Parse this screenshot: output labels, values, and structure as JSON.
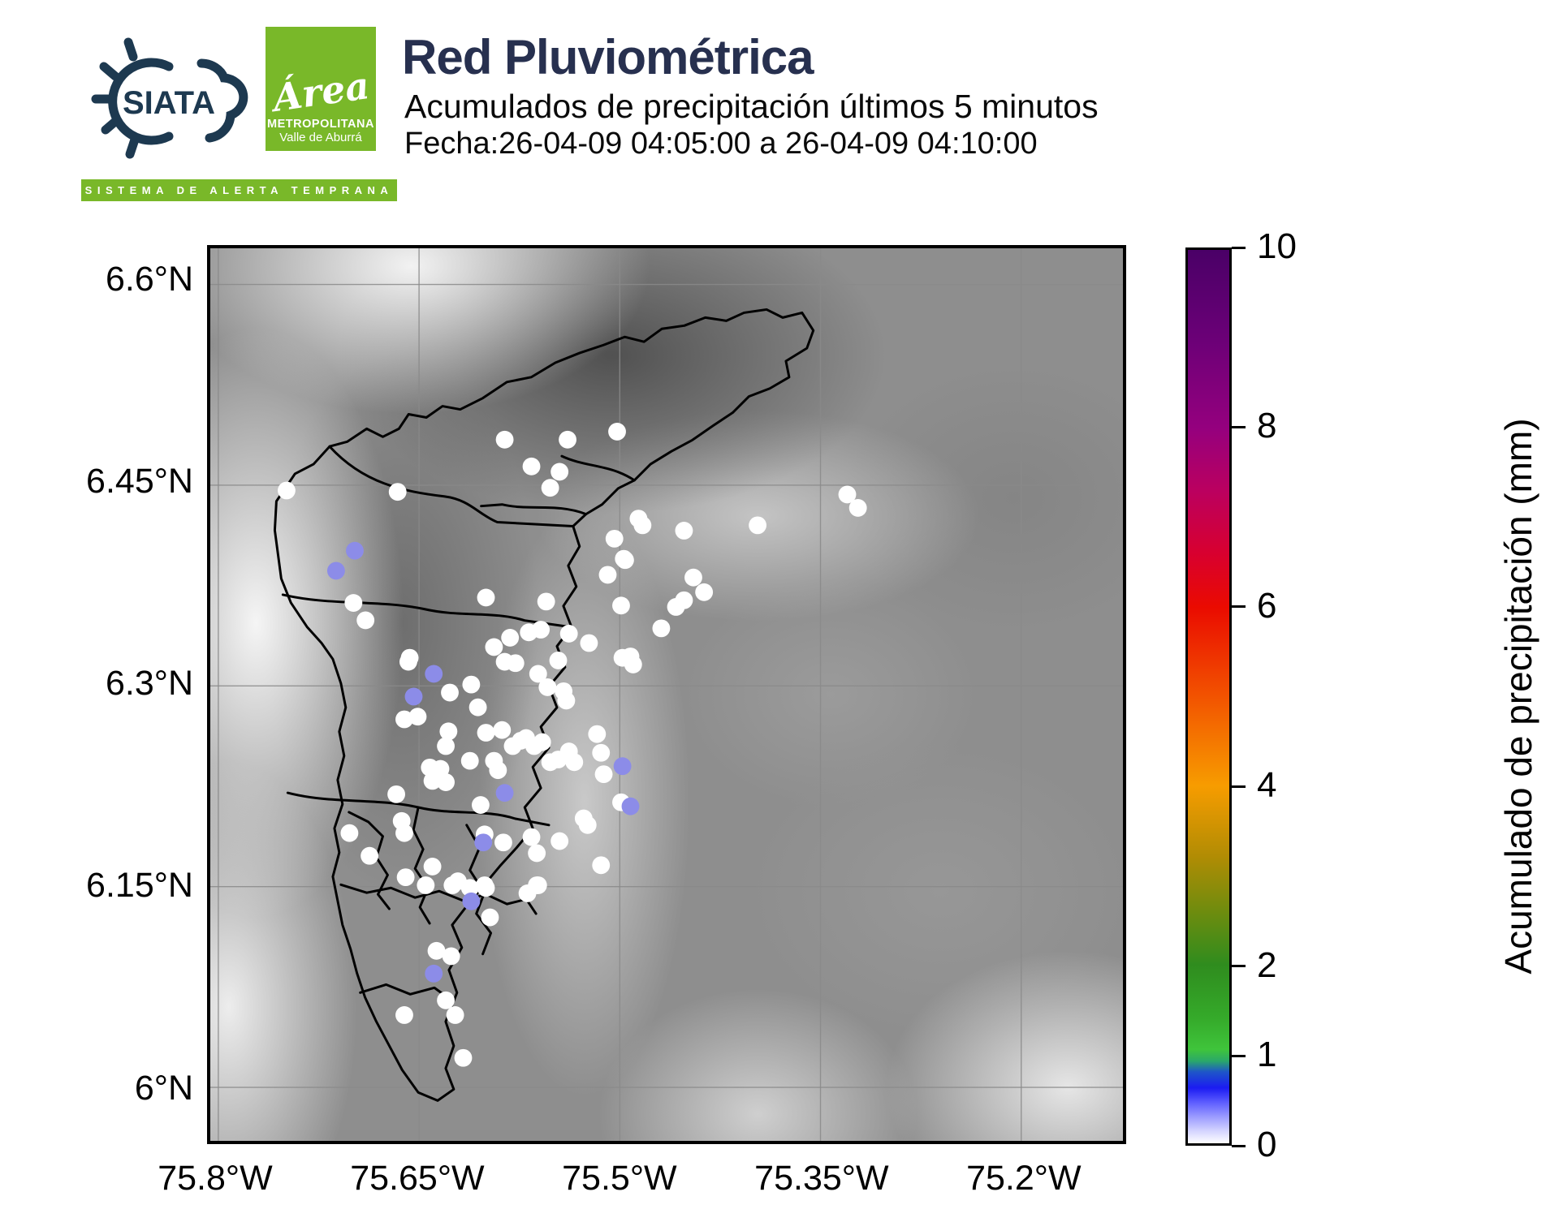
{
  "header": {
    "title": "Red Pluviométrica",
    "subtitle": "Acumulados de precipitación últimos 5 minutos",
    "date_line": "Fecha:26-04-09 04:05:00 a 26-04-09 04:10:00",
    "brand": {
      "siata_label": "SIATA",
      "siata_tagline": "SISTEMA DE ALERTA TEMPRANA",
      "area_script": "Área",
      "area_line1": "METROPOLITANA",
      "area_line2": "Valle de Aburrá",
      "green": "#79b829",
      "navy": "#27304f",
      "logo_ink": "#1d3950"
    }
  },
  "chart_data": {
    "type": "scatter",
    "title": "Red Pluviométrica",
    "x_tick_labels": [
      "75.8°W",
      "75.65°W",
      "75.5°W",
      "75.35°W",
      "75.2°W"
    ],
    "y_tick_labels": [
      "6.6°N",
      "6.45°N",
      "6.3°N",
      "6.15°N",
      "6°N"
    ],
    "x_tick_values": [
      75.8,
      75.65,
      75.5,
      75.35,
      75.2
    ],
    "y_tick_values": [
      6.6,
      6.45,
      6.3,
      6.15,
      6.0
    ],
    "extent": {
      "west": 75.806,
      "east": 75.124,
      "north": 6.627,
      "south": 5.96
    },
    "grid": true,
    "colorbar": {
      "label": "Acumulado de precipitación (mm)",
      "min": 0,
      "max": 10,
      "ticks": [
        0,
        1,
        2,
        4,
        6,
        8,
        10
      ],
      "stops": [
        {
          "v": 10,
          "c": "#4a0067"
        },
        {
          "v": 9,
          "c": "#6b0077"
        },
        {
          "v": 8,
          "c": "#95007e"
        },
        {
          "v": 7.3,
          "c": "#bb005f"
        },
        {
          "v": 6.6,
          "c": "#d8002f"
        },
        {
          "v": 6,
          "c": "#ea0b00"
        },
        {
          "v": 5,
          "c": "#f25300"
        },
        {
          "v": 4,
          "c": "#f79c00"
        },
        {
          "v": 3.2,
          "c": "#b08c04"
        },
        {
          "v": 2.6,
          "c": "#6f8c0e"
        },
        {
          "v": 2,
          "c": "#2f8c1e"
        },
        {
          "v": 1.4,
          "c": "#35aa2a"
        },
        {
          "v": 1.05,
          "c": "#3fc43b"
        },
        {
          "v": 0.92,
          "c": "#2aa86a"
        },
        {
          "v": 0.8,
          "c": "#1e56c8"
        },
        {
          "v": 0.62,
          "c": "#1b1bf2"
        },
        {
          "v": 0.45,
          "c": "#6060ff"
        },
        {
          "v": 0.3,
          "c": "#9a9aff"
        },
        {
          "v": 0.15,
          "c": "#d0d0ff"
        },
        {
          "v": 0,
          "c": "#ffffff"
        }
      ]
    },
    "stations": {
      "dot_radius_px": 11,
      "groups": [
        {
          "name": "sin-lluvia",
          "value_mm": 0,
          "color": "#ffffff",
          "points": [
            [
              75.586,
              6.484
            ],
            [
              75.566,
              6.464
            ],
            [
              75.539,
              6.484
            ],
            [
              75.502,
              6.49
            ],
            [
              75.545,
              6.46
            ],
            [
              75.552,
              6.448
            ],
            [
              75.666,
              6.445
            ],
            [
              75.749,
              6.446
            ],
            [
              75.397,
              6.42
            ],
            [
              75.33,
              6.443
            ],
            [
              75.322,
              6.433
            ],
            [
              75.504,
              6.41
            ],
            [
              75.497,
              6.395
            ],
            [
              75.486,
              6.425
            ],
            [
              75.483,
              6.42
            ],
            [
              75.496,
              6.394
            ],
            [
              75.509,
              6.383
            ],
            [
              75.452,
              6.416
            ],
            [
              75.445,
              6.381
            ],
            [
              75.437,
              6.37
            ],
            [
              75.452,
              6.364
            ],
            [
              75.458,
              6.359
            ],
            [
              75.499,
              6.36
            ],
            [
              75.469,
              6.343
            ],
            [
              75.492,
              6.322
            ],
            [
              75.555,
              6.363
            ],
            [
              75.538,
              6.339
            ],
            [
              75.523,
              6.332
            ],
            [
              75.568,
              6.34
            ],
            [
              75.559,
              6.342
            ],
            [
              75.582,
              6.336
            ],
            [
              75.594,
              6.329
            ],
            [
              75.6,
              6.366
            ],
            [
              75.699,
              6.362
            ],
            [
              75.69,
              6.349
            ],
            [
              75.657,
              6.321
            ],
            [
              75.658,
              6.318
            ],
            [
              75.611,
              6.301
            ],
            [
              75.627,
              6.295
            ],
            [
              75.586,
              6.318
            ],
            [
              75.578,
              6.317
            ],
            [
              75.561,
              6.309
            ],
            [
              75.554,
              6.299
            ],
            [
              75.546,
              6.319
            ],
            [
              75.542,
              6.296
            ],
            [
              75.54,
              6.289
            ],
            [
              75.651,
              6.277
            ],
            [
              75.661,
              6.275
            ],
            [
              75.606,
              6.284
            ],
            [
              75.6,
              6.265
            ],
            [
              75.588,
              6.267
            ],
            [
              75.58,
              6.255
            ],
            [
              75.574,
              6.259
            ],
            [
              75.57,
              6.261
            ],
            [
              75.564,
              6.255
            ],
            [
              75.558,
              6.258
            ],
            [
              75.552,
              6.243
            ],
            [
              75.546,
              6.245
            ],
            [
              75.538,
              6.251
            ],
            [
              75.534,
              6.243
            ],
            [
              75.628,
              6.266
            ],
            [
              75.63,
              6.255
            ],
            [
              75.612,
              6.244
            ],
            [
              75.594,
              6.244
            ],
            [
              75.591,
              6.237
            ],
            [
              75.642,
              6.239
            ],
            [
              75.634,
              6.238
            ],
            [
              75.64,
              6.229
            ],
            [
              75.63,
              6.228
            ],
            [
              75.667,
              6.219
            ],
            [
              75.663,
              6.199
            ],
            [
              75.661,
              6.19
            ],
            [
              75.604,
              6.211
            ],
            [
              75.601,
              6.189
            ],
            [
              75.587,
              6.183
            ],
            [
              75.566,
              6.187
            ],
            [
              75.562,
              6.175
            ],
            [
              75.545,
              6.184
            ],
            [
              75.562,
              6.151
            ],
            [
              75.6,
              6.149
            ],
            [
              75.625,
              6.151
            ],
            [
              75.64,
              6.165
            ],
            [
              75.517,
              6.264
            ],
            [
              75.514,
              6.25
            ],
            [
              75.512,
              6.234
            ],
            [
              75.499,
              6.213
            ],
            [
              75.527,
              6.201
            ],
            [
              75.524,
              6.196
            ],
            [
              75.514,
              6.166
            ],
            [
              75.49,
              6.316
            ],
            [
              75.498,
              6.321
            ],
            [
              75.66,
              6.157
            ],
            [
              75.645,
              6.151
            ],
            [
              75.621,
              6.154
            ],
            [
              75.612,
              6.149
            ],
            [
              75.601,
              6.151
            ],
            [
              75.597,
              6.127
            ],
            [
              75.569,
              6.145
            ],
            [
              75.561,
              6.151
            ],
            [
              75.637,
              6.102
            ],
            [
              75.626,
              6.098
            ],
            [
              75.63,
              6.065
            ],
            [
              75.661,
              6.054
            ],
            [
              75.623,
              6.054
            ],
            [
              75.617,
              6.022
            ],
            [
              75.702,
              6.19
            ],
            [
              75.687,
              6.173
            ]
          ]
        },
        {
          "name": "lluvia-ligera",
          "value_mm": 0.3,
          "color": "#8c8ce8",
          "points": [
            [
              75.698,
              6.401
            ],
            [
              75.712,
              6.386
            ],
            [
              75.639,
              6.309
            ],
            [
              75.654,
              6.292
            ],
            [
              75.586,
              6.22
            ],
            [
              75.498,
              6.24
            ],
            [
              75.492,
              6.21
            ],
            [
              75.602,
              6.183
            ],
            [
              75.611,
              6.139
            ],
            [
              75.639,
              6.085
            ]
          ]
        }
      ]
    },
    "boundaries": [
      "M 82,314 L 105,280 128,268 148,246 170,240 194,224 214,234 234,224 246,206 268,210 288,196 310,200 338,186 368,166 398,160 428,142 458,130 488,120 514,110 538,116 560,100 588,96 614,86 640,90 662,80 690,76 710,86 734,80 748,102 740,124 714,140 718,160 694,174 668,184 648,204 624,220 598,238 572,252 546,268 526,288 506,298 486,318 466,330 450,345 458,370 444,394 454,420 438,444 448,470 430,494 440,520 420,544 430,570 410,594 420,620 400,644 410,670 390,694 400,720 380,744 360,766 340,790 320,814 300,840 312,868 296,896 306,924 292,960 302,990 292,1018 302,1044 282,1058 258,1048 238,1020 222,990 206,960 192,930 182,900 174,870 164,840 158,810 152,780 160,750 154,720 164,690 158,660 166,630 160,600 168,570 162,540 152,510 138,490 120,470 100,440 88,410 84,380 80,350 Z",
      "M 148,246 C 190,292 240,302 290,308 C 322,312 332,330 356,340 L 450,345",
      "M 466,330 C 430,316 396,326 362,318 L 336,320",
      "M 526,288 C 496,268 466,272 436,258",
      "M 90,430 C 150,444 210,436 266,448 C 310,458 350,450 390,462 L 446,470",
      "M 96,676 C 150,690 205,682 258,694 C 300,704 340,696 378,708 L 420,716",
      "M 172,700 L 196,712 214,730 206,756 220,778 208,802 222,820",
      "M 258,694 L 252,722 264,746 254,770 270,794 260,818 272,838",
      "M 162,790 L 194,800 224,794 254,806 284,798 314,810 342,802 368,814 392,808 404,826",
      "M 318,716 L 334,744 322,772 340,800 330,826 348,850 338,876",
      "M 186,924 L 218,914 248,926 278,918 300,934"
    ]
  },
  "layout_colors": {
    "boundary": "#000000",
    "gridline": "#8a8a8a"
  }
}
